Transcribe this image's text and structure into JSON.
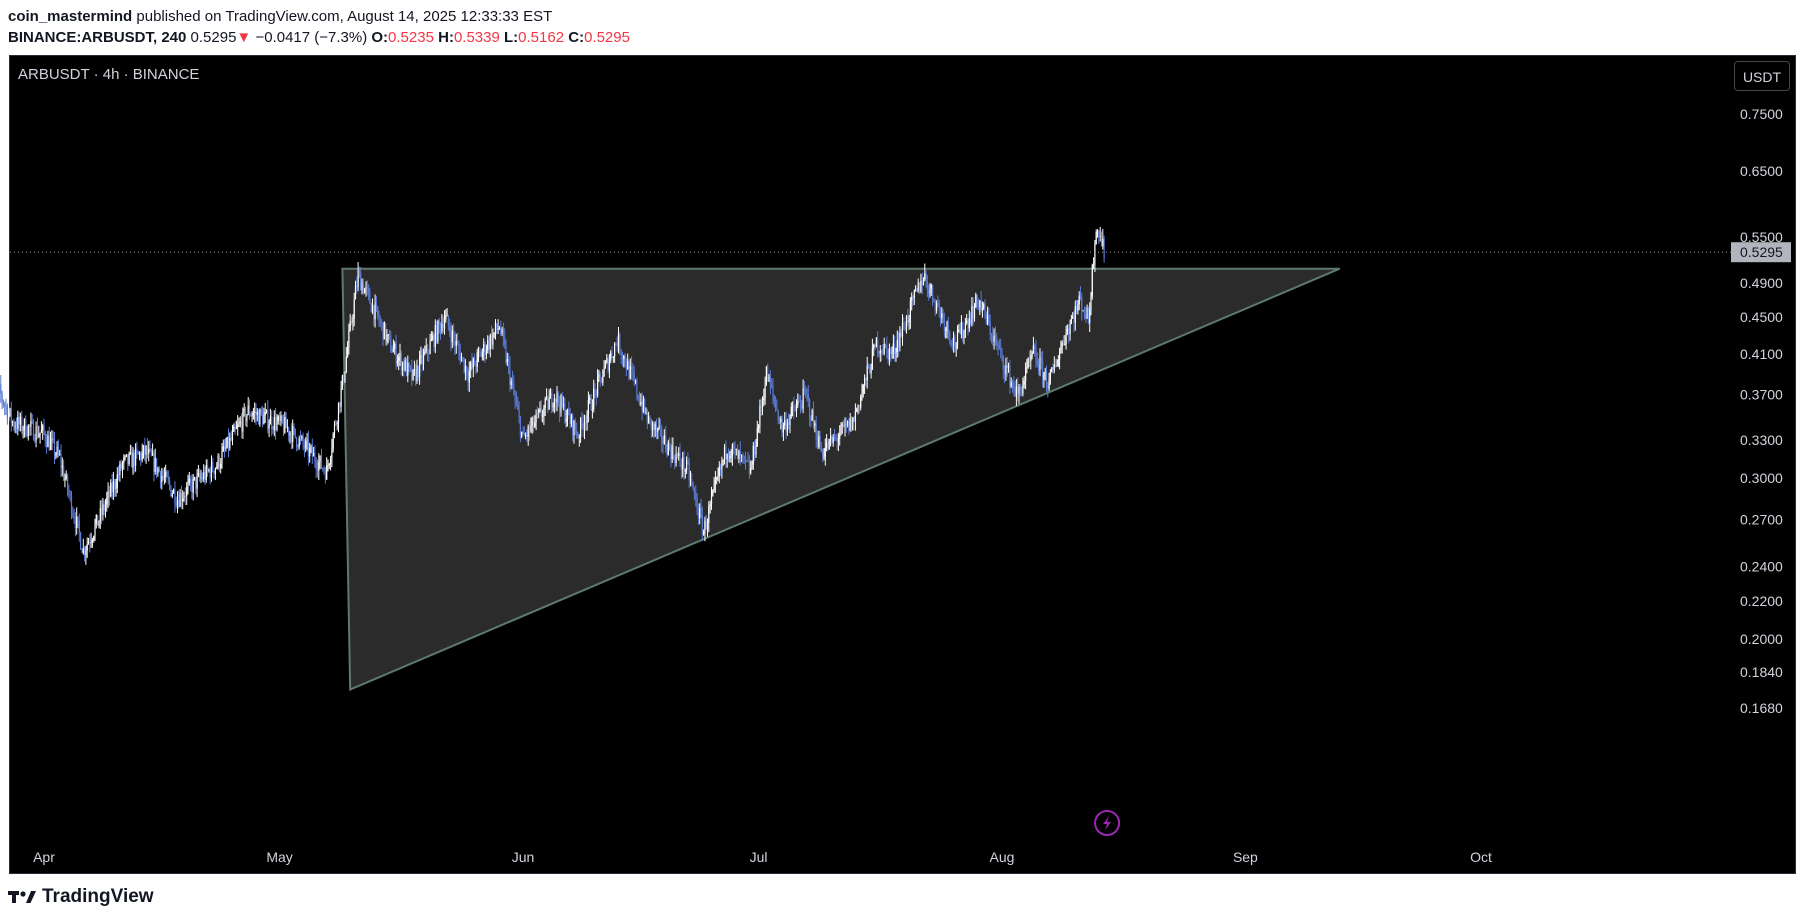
{
  "header": {
    "publisher": "coin_mastermind",
    "published_text": "published on TradingView.com, August 14, 2025 12:33:33 EST",
    "symbol": "BINANCE:ARBUSDT, 240",
    "last": "0.5295",
    "change_arrow": "▼",
    "change": "−0.0417 (−7.3%)",
    "o_label": "O:",
    "o_value": "0.5235",
    "h_label": "H:",
    "h_value": "0.5339",
    "l_label": "L:",
    "l_value": "0.5162",
    "c_label": "C:",
    "c_value": "0.5295"
  },
  "chart_title": "ARBUSDT · 4h · BINANCE",
  "currency_button": "USDT",
  "footer": {
    "brand": "TradingView",
    "logo_icon": "tradingview-logo-icon"
  },
  "events_icon": "lightning-icon",
  "colors": {
    "background": "#000000",
    "candle_up": "#ffffff",
    "candle_down": "#5b7bd5",
    "triangle_fill": "#2f2f2f",
    "triangle_stroke": "#5d7a6d",
    "price_label_bg": "#b2b5be",
    "accent_purple": "#9c27b0"
  },
  "chart_data": {
    "type": "candlestick",
    "scale": "log",
    "y_ticks": [
      "0.7500",
      "0.6500",
      "0.5500",
      "0.4900",
      "0.4500",
      "0.4100",
      "0.3700",
      "0.3300",
      "0.3000",
      "0.2700",
      "0.2400",
      "0.2200",
      "0.2000",
      "0.1840",
      "0.1680"
    ],
    "x_ticks": [
      "Apr",
      "May",
      "Jun",
      "Jul",
      "Aug",
      "Sep",
      "Oct"
    ],
    "current_price": "0.5295",
    "price_path": [
      {
        "date": "2025-03-25",
        "price": 0.395
      },
      {
        "date": "2025-03-28",
        "price": 0.345
      },
      {
        "date": "2025-04-01",
        "price": 0.335
      },
      {
        "date": "2025-04-03",
        "price": 0.315
      },
      {
        "date": "2025-04-06",
        "price": 0.25
      },
      {
        "date": "2025-04-08",
        "price": 0.27
      },
      {
        "date": "2025-04-11",
        "price": 0.31
      },
      {
        "date": "2025-04-14",
        "price": 0.32
      },
      {
        "date": "2025-04-18",
        "price": 0.285
      },
      {
        "date": "2025-04-23",
        "price": 0.31
      },
      {
        "date": "2025-04-27",
        "price": 0.355
      },
      {
        "date": "2025-05-02",
        "price": 0.34
      },
      {
        "date": "2025-05-07",
        "price": 0.305
      },
      {
        "date": "2025-05-09",
        "price": 0.38
      },
      {
        "date": "2025-05-11",
        "price": 0.5
      },
      {
        "date": "2025-05-15",
        "price": 0.42
      },
      {
        "date": "2025-05-18",
        "price": 0.385
      },
      {
        "date": "2025-05-22",
        "price": 0.45
      },
      {
        "date": "2025-05-25",
        "price": 0.39
      },
      {
        "date": "2025-05-29",
        "price": 0.44
      },
      {
        "date": "2025-06-01",
        "price": 0.33
      },
      {
        "date": "2025-06-05",
        "price": 0.37
      },
      {
        "date": "2025-06-08",
        "price": 0.335
      },
      {
        "date": "2025-06-13",
        "price": 0.425
      },
      {
        "date": "2025-06-17",
        "price": 0.345
      },
      {
        "date": "2025-06-22",
        "price": 0.305
      },
      {
        "date": "2025-06-24",
        "price": 0.262
      },
      {
        "date": "2025-06-27",
        "price": 0.325
      },
      {
        "date": "2025-06-30",
        "price": 0.305
      },
      {
        "date": "2025-07-02",
        "price": 0.39
      },
      {
        "date": "2025-07-04",
        "price": 0.34
      },
      {
        "date": "2025-07-07",
        "price": 0.37
      },
      {
        "date": "2025-07-09",
        "price": 0.32
      },
      {
        "date": "2025-07-13",
        "price": 0.345
      },
      {
        "date": "2025-07-16",
        "price": 0.42
      },
      {
        "date": "2025-07-18",
        "price": 0.41
      },
      {
        "date": "2025-07-20",
        "price": 0.45
      },
      {
        "date": "2025-07-22",
        "price": 0.5
      },
      {
        "date": "2025-07-26",
        "price": 0.42
      },
      {
        "date": "2025-07-29",
        "price": 0.47
      },
      {
        "date": "2025-08-01",
        "price": 0.405
      },
      {
        "date": "2025-08-03",
        "price": 0.368
      },
      {
        "date": "2025-08-05",
        "price": 0.41
      },
      {
        "date": "2025-08-07",
        "price": 0.38
      },
      {
        "date": "2025-08-09",
        "price": 0.43
      },
      {
        "date": "2025-08-11",
        "price": 0.47
      },
      {
        "date": "2025-08-12",
        "price": 0.445
      },
      {
        "date": "2025-08-13",
        "price": 0.57
      },
      {
        "date": "2025-08-14",
        "price": 0.5295
      }
    ],
    "annotations": [
      {
        "type": "triangle",
        "points": [
          {
            "date": "2025-05-09",
            "price": 0.508
          },
          {
            "date": "2025-05-10",
            "price": 0.176
          },
          {
            "date": "2025-09-13",
            "price": 0.508
          }
        ]
      }
    ]
  }
}
